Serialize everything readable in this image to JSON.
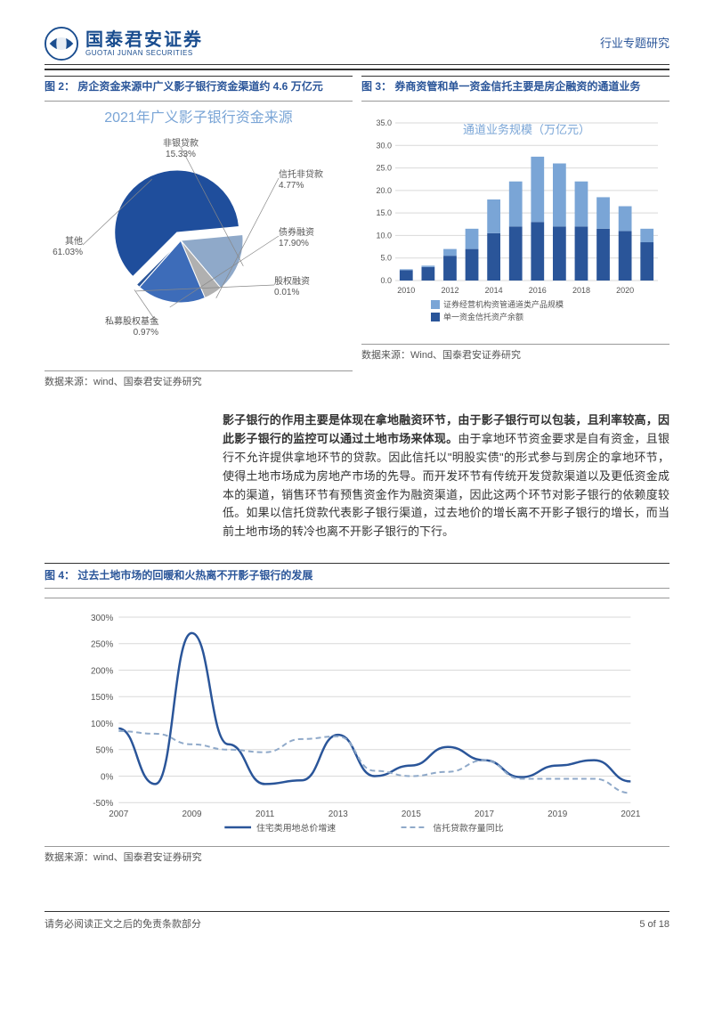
{
  "header": {
    "company_cn": "国泰君安证券",
    "company_en": "GUOTAI JUNAN SECURITIES",
    "doc_type": "行业专题研究"
  },
  "fig2": {
    "caption": "图 2： 房企资金来源中广义影子银行资金渠道约 4.6 万亿元",
    "title": "2021年广义影子银行资金来源",
    "type": "pie",
    "slices": [
      {
        "label": "其他",
        "pct": 61.03,
        "color": "#1f4e9c"
      },
      {
        "label": "非银贷款",
        "pct": 15.33,
        "color": "#8fa9c9"
      },
      {
        "label": "信托非贷款",
        "pct": 4.77,
        "color": "#b0b0b0"
      },
      {
        "label": "债券融资",
        "pct": 17.9,
        "color": "#3d6cb9"
      },
      {
        "label": "股权融资",
        "pct": 0.01,
        "color": "#666666"
      },
      {
        "label": "私募股权基金",
        "pct": 0.97,
        "color": "#2a5599"
      }
    ],
    "label_fontsize": 10,
    "source": "数据来源：wind、国泰君安证券研究"
  },
  "fig3": {
    "caption": "图 3： 券商资管和单一资金信托主要是房企融资的通道业务",
    "title": "通道业务规模（万亿元）",
    "type": "stacked_bar",
    "categories": [
      "2010",
      "2011",
      "2012",
      "2013",
      "2014",
      "2015",
      "2016",
      "2017",
      "2018",
      "2019",
      "2020",
      "2021"
    ],
    "series": [
      {
        "name": "证券经营机构资管通道类产品规模",
        "color": "#7aa5d6",
        "values": [
          0.2,
          0.3,
          1.5,
          4.5,
          7.5,
          10.0,
          14.5,
          14.0,
          10.0,
          7.0,
          5.5,
          3.0
        ]
      },
      {
        "name": "单一资金信托资产余额",
        "color": "#2a5599",
        "values": [
          2.3,
          3.0,
          5.5,
          7.0,
          10.5,
          12.0,
          13.0,
          12.0,
          12.0,
          11.5,
          11.0,
          8.5
        ]
      }
    ],
    "ylim": [
      0,
      35
    ],
    "ytick_step": 5,
    "grid_color": "#d9d9d9",
    "label_fontsize": 9,
    "title_color": "#7aa5d6",
    "source": "数据来源：Wind、国泰君安证券研究"
  },
  "paragraph": {
    "bold": "影子银行的作用主要是体现在拿地融资环节，由于影子银行可以包装，且利率较高，因此影子银行的监控可以通过土地市场来体现。",
    "rest": "由于拿地环节资金要求是自有资金，且银行不允许提供拿地环节的贷款。因此信托以\"明股实债\"的形式参与到房企的拿地环节，使得土地市场成为房地产市场的先导。而开发环节有传统开发贷款渠道以及更低资金成本的渠道，销售环节有预售资金作为融资渠道，因此这两个环节对影子银行的依赖度较低。如果以信托贷款代表影子银行渠道，过去地价的增长离不开影子银行的增长，而当前土地市场的转冷也离不开影子银行的下行。"
  },
  "fig4": {
    "caption": "图 4： 过去土地市场的回暖和火热离不开影子银行的发展",
    "type": "line",
    "x_categories": [
      "2007",
      "2009",
      "2011",
      "2013",
      "2015",
      "2017",
      "2019",
      "2021"
    ],
    "ylim": [
      -50,
      300
    ],
    "ytick_step": 50,
    "series": [
      {
        "name": "住宅类用地总价增速",
        "color": "#2a5599",
        "dash": "none",
        "width": 2.5,
        "points": [
          [
            2007,
            90
          ],
          [
            2008,
            -15
          ],
          [
            2009,
            270
          ],
          [
            2010,
            60
          ],
          [
            2011,
            -15
          ],
          [
            2012,
            -8
          ],
          [
            2013,
            78
          ],
          [
            2014,
            0
          ],
          [
            2015,
            20
          ],
          [
            2016,
            55
          ],
          [
            2017,
            30
          ],
          [
            2018,
            -2
          ],
          [
            2019,
            20
          ],
          [
            2020,
            30
          ],
          [
            2021,
            -10
          ]
        ]
      },
      {
        "name": "信托贷款存量同比",
        "color": "#8fa9c9",
        "dash": "6,4",
        "width": 2,
        "points": [
          [
            2007,
            85
          ],
          [
            2008,
            80
          ],
          [
            2009,
            60
          ],
          [
            2010,
            50
          ],
          [
            2011,
            45
          ],
          [
            2012,
            70
          ],
          [
            2013,
            75
          ],
          [
            2014,
            10
          ],
          [
            2015,
            0
          ],
          [
            2016,
            8
          ],
          [
            2017,
            30
          ],
          [
            2018,
            -5
          ],
          [
            2019,
            -5
          ],
          [
            2020,
            -5
          ],
          [
            2021,
            -32
          ]
        ]
      }
    ],
    "grid_color": "#d9d9d9",
    "label_fontsize": 10,
    "source": "数据来源：wind、国泰君安证券研究"
  },
  "footer": {
    "disclaimer": "请务必阅读正文之后的免责条款部分",
    "page": "5 of 18"
  },
  "colors": {
    "brand": "#1a4d8f",
    "accent": "#2a5599"
  }
}
